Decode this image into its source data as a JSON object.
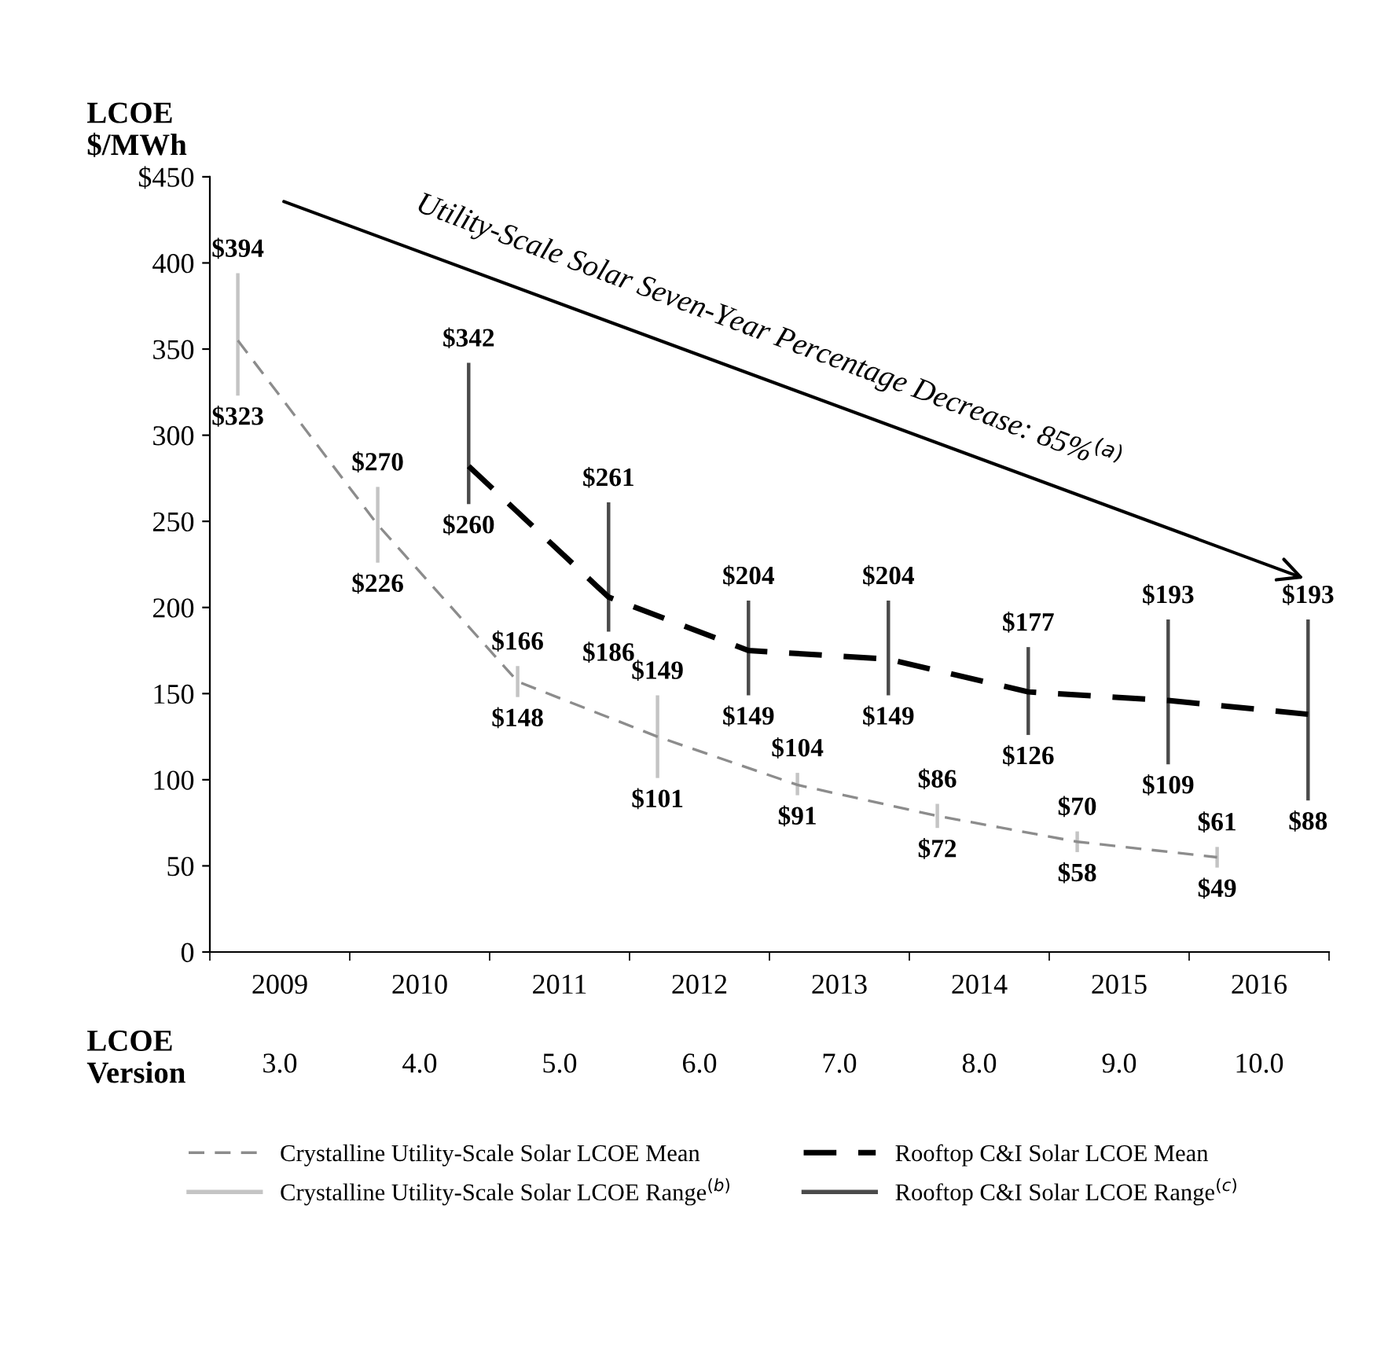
{
  "chart_data": {
    "type": "bar",
    "ylabel": "LCOE\n$/MWh",
    "categories": [
      "2009",
      "2010",
      "2011",
      "2012",
      "2013",
      "2014",
      "2015",
      "2016"
    ],
    "series": [
      {
        "name": "Crystalline Utility-Scale Solar LCOE Mean",
        "type": "line",
        "line_style": "dashed",
        "color": "#8c8c8c",
        "values": [
          355,
          248,
          157,
          125,
          97,
          79,
          64,
          55
        ]
      },
      {
        "name": "Crystalline Utility-Scale Solar LCOE Range$^{(b)}$",
        "color": "#c4c4c4",
        "base": [
          323,
          226,
          148,
          101,
          91,
          72,
          58,
          49
        ],
        "values": [
          71,
          44,
          18,
          48,
          13,
          14,
          12,
          12
        ]
      },
      {
        "name": "Rooftop C&I Solar LCOE Mean",
        "type": "line",
        "line_style": "dashed",
        "color": "#000000",
        "values": [
          null,
          282,
          206,
          175,
          170,
          151,
          146,
          138
        ]
      },
      {
        "name": "Rooftop C&I Solar LCOE Range$^{(c)}$",
        "color": "#4a4a4a",
        "base": [
          null,
          260,
          186,
          149,
          149,
          126,
          109,
          88
        ],
        "values": [
          null,
          82,
          75,
          55,
          55,
          51,
          84,
          105
        ]
      }
    ],
    "ylim": [
      0,
      450
    ],
    "yticks": [
      0,
      50,
      100,
      150,
      200,
      250,
      300,
      350,
      400,
      {
        "value": 450,
        "label": "$450"
      }
    ],
    "grid": false,
    "legend": "bottom",
    "annotations": [
      "Utility-Scale Solar Seven-Year Percentage Decrease: 85%$^{(a)}$",
      "LCOE\nVersion",
      "3.0",
      "4.0",
      "5.0",
      "6.0",
      "7.0",
      "8.0",
      "9.0",
      "10.0",
      "$394",
      "$323",
      "$270",
      "$226",
      "$166",
      "$148",
      "$149",
      "$101",
      "$104",
      "$91",
      "$86",
      "$72",
      "$70",
      "$58",
      "$61",
      "$49",
      "$342",
      "$260",
      "$261",
      "$186",
      "$204",
      "$149",
      "$204",
      "$149",
      "$177",
      "$126",
      "$193",
      "$109",
      "$193",
      "$88"
    ]
  }
}
